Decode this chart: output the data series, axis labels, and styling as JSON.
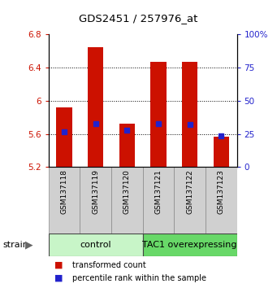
{
  "title": "GDS2451 / 257976_at",
  "samples": [
    "GSM137118",
    "GSM137119",
    "GSM137120",
    "GSM137121",
    "GSM137122",
    "GSM137123"
  ],
  "bar_bottoms": [
    5.2,
    5.2,
    5.2,
    5.2,
    5.2,
    5.2
  ],
  "bar_tops": [
    5.92,
    6.65,
    5.72,
    6.47,
    6.47,
    5.57
  ],
  "blue_values": [
    5.63,
    5.72,
    5.645,
    5.72,
    5.71,
    5.578
  ],
  "ylim_left": [
    5.2,
    6.8
  ],
  "ylim_right": [
    0,
    100
  ],
  "yticks_left": [
    5.2,
    5.6,
    6.0,
    6.4,
    6.8
  ],
  "yticks_right": [
    0,
    25,
    50,
    75,
    100
  ],
  "ytick_labels_left": [
    "5.2",
    "5.6",
    "6",
    "6.4",
    "6.8"
  ],
  "ytick_labels_right": [
    "0",
    "25",
    "50",
    "75",
    "100%"
  ],
  "groups": [
    {
      "label": "control",
      "indices": [
        0,
        1,
        2
      ],
      "color": "#c8f5c8"
    },
    {
      "label": "TAC1 overexpressing",
      "indices": [
        3,
        4,
        5
      ],
      "color": "#68d868"
    }
  ],
  "bar_color": "#cc1100",
  "blue_color": "#2222cc",
  "grid_color": "black",
  "bar_width": 0.5,
  "legend_items": [
    {
      "color": "#cc1100",
      "label": "transformed count"
    },
    {
      "color": "#2222cc",
      "label": "percentile rank within the sample"
    }
  ]
}
